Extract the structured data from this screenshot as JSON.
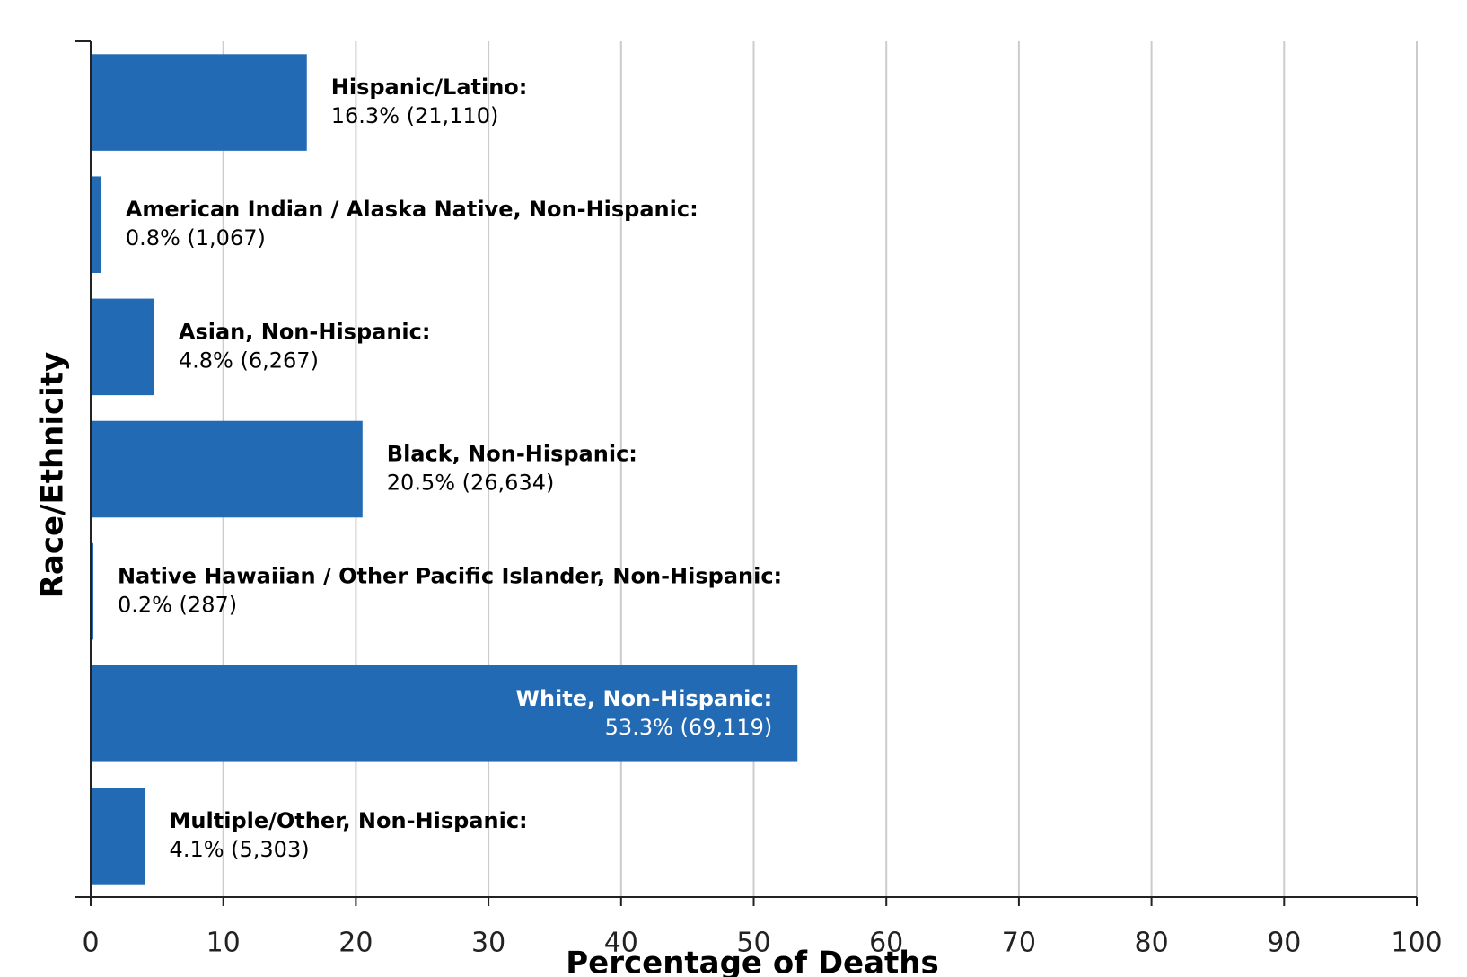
{
  "chart_data": {
    "type": "bar",
    "orientation": "horizontal",
    "x_label": "Percentage of Deaths",
    "y_label": "Race/Ethnicity",
    "categories": [
      "Hispanic/Latino:",
      "American Indian / Alaska Native, Non-Hispanic:",
      "Asian, Non-Hispanic:",
      "Black, Non-Hispanic:",
      "Native Hawaiian / Other Pacific Islander, Non-Hispanic:",
      "White, Non-Hispanic:",
      "Multiple/Other, Non-Hispanic:"
    ],
    "values": [
      16.3,
      0.8,
      4.8,
      20.5,
      0.2,
      53.3,
      4.1
    ],
    "value_labels": [
      "16.3% (21,110)",
      "0.8% (1,067)",
      "4.8% (6,267)",
      "20.5% (26,634)",
      "0.2% (287)",
      "53.3% (69,119)",
      "4.1% (5,303)"
    ],
    "color": "#236ab4",
    "xlim": [
      0,
      100
    ],
    "xticks": [
      0,
      10,
      20,
      30,
      40,
      50,
      60,
      70,
      80,
      90,
      100
    ],
    "grid": true
  }
}
